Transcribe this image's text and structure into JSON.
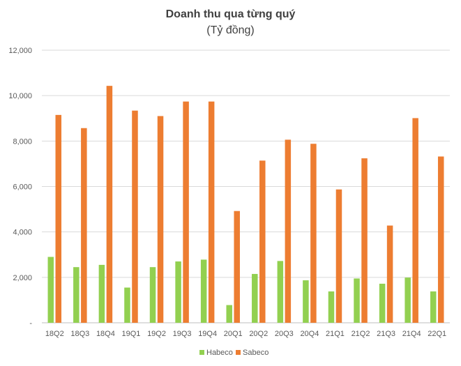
{
  "chart_data": {
    "type": "bar",
    "title": "Doanh thu qua từng quý",
    "subtitle": "(Tỷ đồng)",
    "categories": [
      "18Q2",
      "18Q3",
      "18Q4",
      "19Q1",
      "19Q2",
      "19Q3",
      "19Q4",
      "20Q1",
      "20Q2",
      "20Q3",
      "20Q4",
      "21Q1",
      "21Q2",
      "21Q3",
      "21Q4",
      "22Q1"
    ],
    "series": [
      {
        "name": "Habeco",
        "color": "#92D050",
        "values": [
          2900,
          2450,
          2550,
          1550,
          2450,
          2700,
          2780,
          780,
          2150,
          2720,
          1870,
          1380,
          1950,
          1720,
          1990,
          1380
        ]
      },
      {
        "name": "Sabeco",
        "color": "#ED7D31",
        "values": [
          9150,
          8570,
          10430,
          9340,
          9100,
          9740,
          9740,
          4920,
          7140,
          8060,
          7880,
          5870,
          7240,
          4280,
          9010,
          7320
        ]
      }
    ],
    "yticks": [
      "12,000",
      "10,000",
      "8,000",
      "6,000",
      "4,000",
      "2,000",
      "-"
    ],
    "ylim": [
      0,
      12000
    ],
    "grid": true,
    "legend_position": "bottom"
  }
}
